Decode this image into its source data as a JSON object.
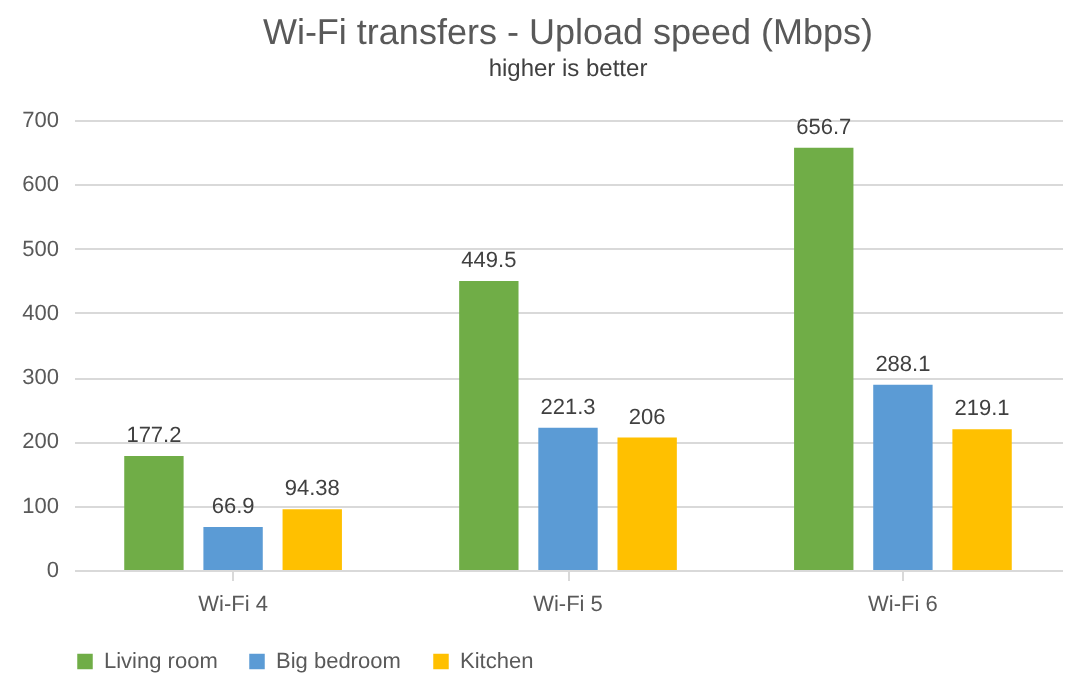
{
  "chart_data": {
    "type": "bar",
    "title": "Wi-Fi transfers - Upload speed (Mbps)",
    "subtitle": "higher is better",
    "categories": [
      "Wi-Fi 4",
      "Wi-Fi 5",
      "Wi-Fi 6"
    ],
    "series": [
      {
        "name": "Living room",
        "color": "#70ad47",
        "values": [
          177.2,
          449.5,
          656.7
        ]
      },
      {
        "name": "Big bedroom",
        "color": "#5b9bd5",
        "values": [
          66.9,
          221.3,
          288.1
        ]
      },
      {
        "name": "Kitchen",
        "color": "#ffc000",
        "values": [
          94.38,
          206,
          219.1
        ]
      }
    ],
    "ylim": [
      0,
      700
    ],
    "yticks": [
      0,
      100,
      200,
      300,
      400,
      500,
      600,
      700
    ],
    "grid": "y",
    "legend": "bottom",
    "data_labels": true
  }
}
